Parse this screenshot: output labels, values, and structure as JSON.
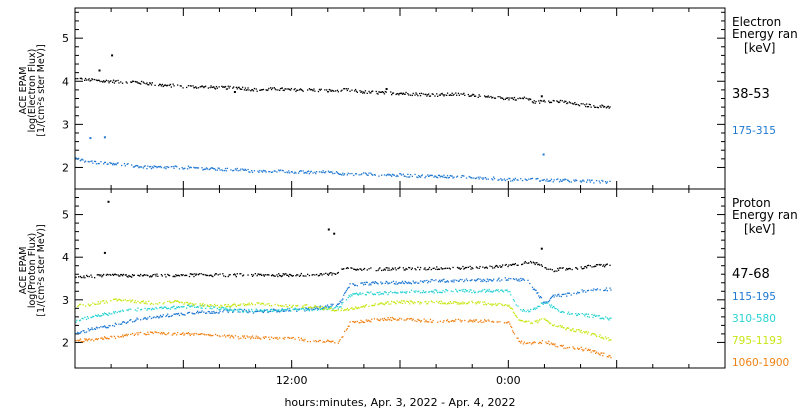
{
  "chart_data": [
    {
      "type": "scatter",
      "panel": "electron",
      "ylabel_lines": [
        "ACE EPAM",
        "log(Electron Flux)",
        "[1/(cm²s ster MeV)]"
      ],
      "ylim": [
        1.5,
        5.7
      ],
      "yticks": [
        2,
        3,
        4,
        5
      ],
      "legend_title_lines": [
        "Electron",
        "Energy ran"
      ],
      "legend_unit": "[keV]",
      "series": [
        {
          "name": "38-53",
          "color": "#000000",
          "points": [
            [
              0.02,
              4.05
            ],
            [
              0.5,
              4.05
            ],
            [
              1,
              4.02
            ],
            [
              1.5,
              4.0
            ],
            [
              2,
              4.0
            ],
            [
              2.5,
              3.98
            ],
            [
              3,
              4.0
            ],
            [
              3.5,
              3.97
            ],
            [
              4,
              3.95
            ],
            [
              4.5,
              3.92
            ],
            [
              5,
              3.9
            ],
            [
              5.5,
              3.9
            ],
            [
              6,
              3.88
            ],
            [
              7,
              3.87
            ],
            [
              8,
              3.85
            ],
            [
              9,
              3.85
            ],
            [
              10,
              3.8
            ],
            [
              11,
              3.82
            ],
            [
              12,
              3.8
            ],
            [
              13,
              3.8
            ],
            [
              14,
              3.78
            ],
            [
              15,
              3.8
            ],
            [
              16,
              3.75
            ],
            [
              17,
              3.73
            ],
            [
              18,
              3.72
            ],
            [
              19,
              3.7
            ],
            [
              20,
              3.68
            ],
            [
              21,
              3.7
            ],
            [
              22,
              3.68
            ],
            [
              23,
              3.62
            ],
            [
              24,
              3.6
            ],
            [
              25,
              3.6
            ],
            [
              25.5,
              3.5
            ],
            [
              26,
              3.55
            ],
            [
              27,
              3.52
            ],
            [
              28,
              3.45
            ],
            [
              29,
              3.42
            ],
            [
              29.7,
              3.4
            ]
          ],
          "spikes": [
            [
              1.3,
              4.25
            ],
            [
              2.0,
              4.6
            ],
            [
              8.8,
              3.75
            ],
            [
              17.2,
              3.82
            ],
            [
              25.8,
              3.65
            ]
          ]
        },
        {
          "name": "175-315",
          "color": "#1e78d2",
          "points": [
            [
              0.02,
              2.2
            ],
            [
              0.5,
              2.15
            ],
            [
              1,
              2.12
            ],
            [
              2,
              2.1
            ],
            [
              3,
              2.05
            ],
            [
              4,
              2.0
            ],
            [
              5,
              2.0
            ],
            [
              6,
              2.0
            ],
            [
              7,
              1.98
            ],
            [
              8,
              1.95
            ],
            [
              9,
              1.95
            ],
            [
              10,
              1.9
            ],
            [
              11,
              1.92
            ],
            [
              12,
              1.9
            ],
            [
              13,
              1.88
            ],
            [
              14,
              1.9
            ],
            [
              15,
              1.85
            ],
            [
              16,
              1.85
            ],
            [
              17,
              1.83
            ],
            [
              18,
              1.82
            ],
            [
              19,
              1.8
            ],
            [
              20,
              1.8
            ],
            [
              21,
              1.78
            ],
            [
              22,
              1.78
            ],
            [
              23,
              1.75
            ],
            [
              24,
              1.72
            ],
            [
              25,
              1.73
            ],
            [
              26,
              1.7
            ],
            [
              27,
              1.7
            ],
            [
              28,
              1.68
            ],
            [
              29,
              1.67
            ],
            [
              29.7,
              1.66
            ]
          ],
          "spikes": [
            [
              0.8,
              2.68
            ],
            [
              1.6,
              2.7
            ],
            [
              25.9,
              2.3
            ]
          ]
        }
      ]
    },
    {
      "type": "scatter",
      "panel": "proton",
      "ylabel_lines": [
        "ACE EPAM",
        "log(Proton Flux)",
        "[1/(cm²s ster MeV)]"
      ],
      "ylim": [
        1.4,
        5.6
      ],
      "yticks": [
        2,
        3,
        4,
        5
      ],
      "xlabel": "hours:minutes, Apr.  3, 2022 - Apr.  4, 2022",
      "x_tick_labels": [
        {
          "hour": 12,
          "label": "12:00"
        },
        {
          "hour": 24,
          "label": "0:00"
        }
      ],
      "xlim": [
        0,
        36
      ],
      "legend_title_lines": [
        "Proton",
        "Energy ran"
      ],
      "legend_unit": "[keV]",
      "series": [
        {
          "name": "47-68",
          "color": "#000000",
          "points": [
            [
              0.02,
              3.55
            ],
            [
              1,
              3.55
            ],
            [
              2,
              3.57
            ],
            [
              3,
              3.56
            ],
            [
              4,
              3.57
            ],
            [
              5,
              3.57
            ],
            [
              6,
              3.58
            ],
            [
              7,
              3.58
            ],
            [
              8,
              3.58
            ],
            [
              9,
              3.58
            ],
            [
              10,
              3.58
            ],
            [
              11,
              3.58
            ],
            [
              12,
              3.58
            ],
            [
              13,
              3.59
            ],
            [
              14,
              3.6
            ],
            [
              14.6,
              3.62
            ],
            [
              14.7,
              3.72
            ],
            [
              15.5,
              3.72
            ],
            [
              16.5,
              3.72
            ],
            [
              18,
              3.73
            ],
            [
              19,
              3.73
            ],
            [
              20,
              3.74
            ],
            [
              21,
              3.75
            ],
            [
              22,
              3.75
            ],
            [
              23,
              3.78
            ],
            [
              24,
              3.8
            ],
            [
              25,
              3.88
            ],
            [
              25.5,
              3.85
            ],
            [
              26,
              3.75
            ],
            [
              26.5,
              3.7
            ],
            [
              27,
              3.72
            ],
            [
              28,
              3.76
            ],
            [
              29,
              3.8
            ],
            [
              29.7,
              3.82
            ]
          ],
          "spikes": [
            [
              1.6,
              4.1
            ],
            [
              1.8,
              5.3
            ],
            [
              14.0,
              4.65
            ],
            [
              14.3,
              4.55
            ],
            [
              25.8,
              4.2
            ]
          ]
        },
        {
          "name": "115-195",
          "color": "#1e78d2",
          "points": [
            [
              0.02,
              2.2
            ],
            [
              0.8,
              2.3
            ],
            [
              1.5,
              2.35
            ],
            [
              2.5,
              2.45
            ],
            [
              3.5,
              2.55
            ],
            [
              4.5,
              2.6
            ],
            [
              5.5,
              2.65
            ],
            [
              6.5,
              2.7
            ],
            [
              8,
              2.72
            ],
            [
              9,
              2.75
            ],
            [
              10,
              2.72
            ],
            [
              11,
              2.75
            ],
            [
              12,
              2.76
            ],
            [
              13,
              2.78
            ],
            [
              14.6,
              2.9
            ],
            [
              15.2,
              3.35
            ],
            [
              16,
              3.38
            ],
            [
              17,
              3.4
            ],
            [
              18,
              3.4
            ],
            [
              19,
              3.42
            ],
            [
              20,
              3.45
            ],
            [
              21,
              3.45
            ],
            [
              22,
              3.47
            ],
            [
              23,
              3.45
            ],
            [
              24,
              3.5
            ],
            [
              25,
              3.45
            ],
            [
              25.5,
              3.2
            ],
            [
              26,
              2.9
            ],
            [
              26.5,
              3.1
            ],
            [
              27,
              3.1
            ],
            [
              28,
              3.2
            ],
            [
              29,
              3.25
            ],
            [
              29.7,
              3.25
            ]
          ]
        },
        {
          "name": "310-580",
          "color": "#28d2d2",
          "points": [
            [
              0.02,
              2.5
            ],
            [
              0.8,
              2.6
            ],
            [
              1.5,
              2.65
            ],
            [
              2.5,
              2.72
            ],
            [
              3.5,
              2.78
            ],
            [
              4.5,
              2.8
            ],
            [
              5.5,
              2.82
            ],
            [
              6.5,
              2.85
            ],
            [
              8,
              2.8
            ],
            [
              9,
              2.75
            ],
            [
              10,
              2.75
            ],
            [
              11,
              2.75
            ],
            [
              12,
              2.77
            ],
            [
              13,
              2.78
            ],
            [
              14.6,
              2.82
            ],
            [
              15.2,
              3.1
            ],
            [
              16,
              3.15
            ],
            [
              17,
              3.15
            ],
            [
              18,
              3.18
            ],
            [
              19,
              3.2
            ],
            [
              20,
              3.2
            ],
            [
              21,
              3.22
            ],
            [
              22,
              3.2
            ],
            [
              23,
              3.22
            ],
            [
              24,
              3.2
            ],
            [
              24.6,
              2.75
            ],
            [
              25.3,
              2.75
            ],
            [
              26,
              2.95
            ],
            [
              26.5,
              2.8
            ],
            [
              27,
              2.7
            ],
            [
              28,
              2.65
            ],
            [
              29,
              2.6
            ],
            [
              29.7,
              2.55
            ]
          ]
        },
        {
          "name": "795-1193",
          "color": "#c8e614",
          "points": [
            [
              0.02,
              2.85
            ],
            [
              0.8,
              2.9
            ],
            [
              1.5,
              2.95
            ],
            [
              2.5,
              3.0
            ],
            [
              3.5,
              2.95
            ],
            [
              4.5,
              2.92
            ],
            [
              5.5,
              2.95
            ],
            [
              6.5,
              2.9
            ],
            [
              8,
              2.85
            ],
            [
              9,
              2.88
            ],
            [
              10,
              2.9
            ],
            [
              11,
              2.88
            ],
            [
              12,
              2.85
            ],
            [
              13,
              2.85
            ],
            [
              14.6,
              2.75
            ],
            [
              15.2,
              2.8
            ],
            [
              16,
              2.85
            ],
            [
              17,
              2.92
            ],
            [
              18,
              2.95
            ],
            [
              19,
              2.93
            ],
            [
              20,
              2.95
            ],
            [
              21,
              2.92
            ],
            [
              22,
              2.95
            ],
            [
              23,
              2.9
            ],
            [
              24,
              2.88
            ],
            [
              24.6,
              2.5
            ],
            [
              25.3,
              2.45
            ],
            [
              26,
              2.55
            ],
            [
              26.5,
              2.4
            ],
            [
              27,
              2.35
            ],
            [
              28,
              2.25
            ],
            [
              29,
              2.15
            ],
            [
              29.7,
              2.05
            ]
          ]
        },
        {
          "name": "1060-1900",
          "color": "#f08214",
          "points": [
            [
              0.02,
              2.05
            ],
            [
              0.8,
              2.05
            ],
            [
              1.5,
              2.1
            ],
            [
              2.5,
              2.15
            ],
            [
              3.5,
              2.2
            ],
            [
              4.5,
              2.22
            ],
            [
              5.5,
              2.2
            ],
            [
              6.5,
              2.2
            ],
            [
              8,
              2.15
            ],
            [
              9,
              2.12
            ],
            [
              10,
              2.12
            ],
            [
              11,
              2.1
            ],
            [
              12,
              2.1
            ],
            [
              13,
              2.05
            ],
            [
              14.6,
              2.0
            ],
            [
              15.2,
              2.45
            ],
            [
              16,
              2.5
            ],
            [
              17,
              2.55
            ],
            [
              18,
              2.55
            ],
            [
              19,
              2.52
            ],
            [
              20,
              2.5
            ],
            [
              21,
              2.52
            ],
            [
              22,
              2.5
            ],
            [
              23,
              2.5
            ],
            [
              24,
              2.45
            ],
            [
              24.6,
              2.0
            ],
            [
              25.3,
              1.98
            ],
            [
              26,
              2.02
            ],
            [
              26.5,
              1.95
            ],
            [
              27,
              1.9
            ],
            [
              28,
              1.85
            ],
            [
              29,
              1.75
            ],
            [
              29.7,
              1.65
            ]
          ]
        }
      ]
    }
  ]
}
